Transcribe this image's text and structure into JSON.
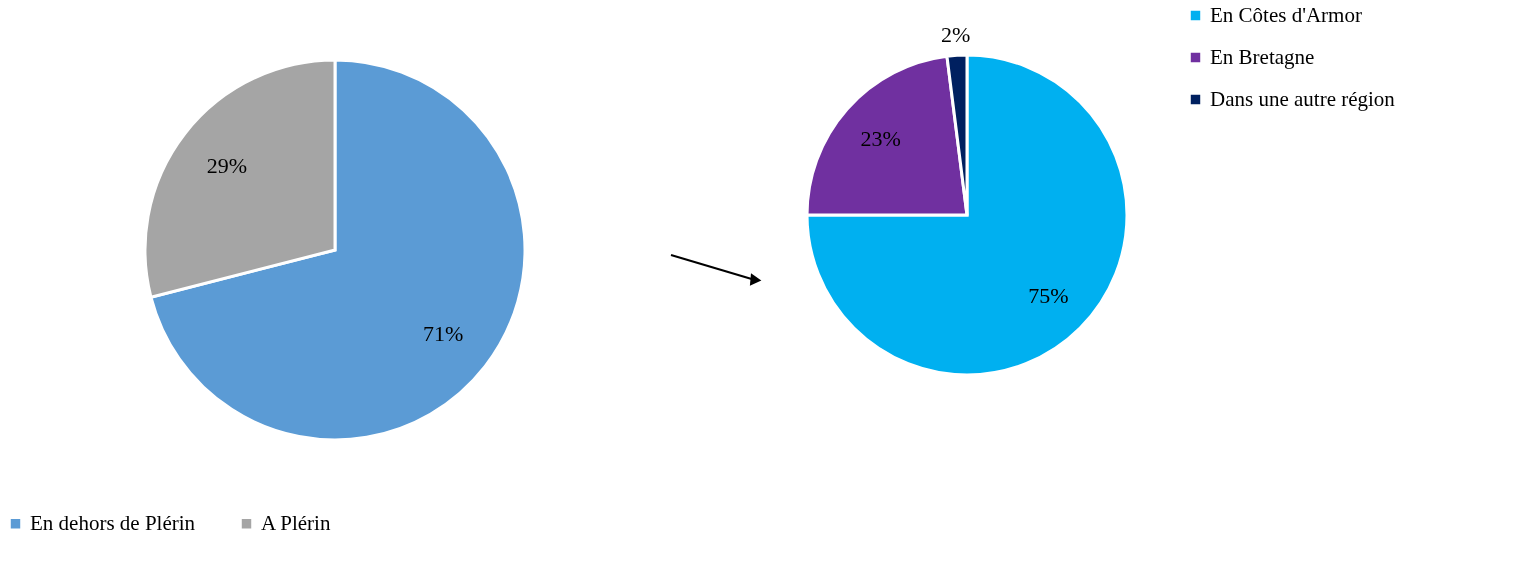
{
  "chart_data": [
    {
      "type": "pie",
      "categories": [
        "En dehors de Plérin",
        "A Plérin"
      ],
      "values": [
        71,
        29
      ],
      "colors": [
        "#5b9bd5",
        "#a5a5a5"
      ],
      "value_labels": [
        "71%",
        "29%"
      ],
      "legend": "bottom"
    },
    {
      "type": "pie",
      "categories": [
        "En Côtes d'Armor",
        "En Bretagne",
        "Dans une autre région"
      ],
      "values": [
        75,
        23,
        2
      ],
      "colors": [
        "#00b0f0",
        "#7030a0",
        "#002060"
      ],
      "value_labels": [
        "75%",
        "23%",
        "2%"
      ],
      "legend": "right"
    }
  ]
}
